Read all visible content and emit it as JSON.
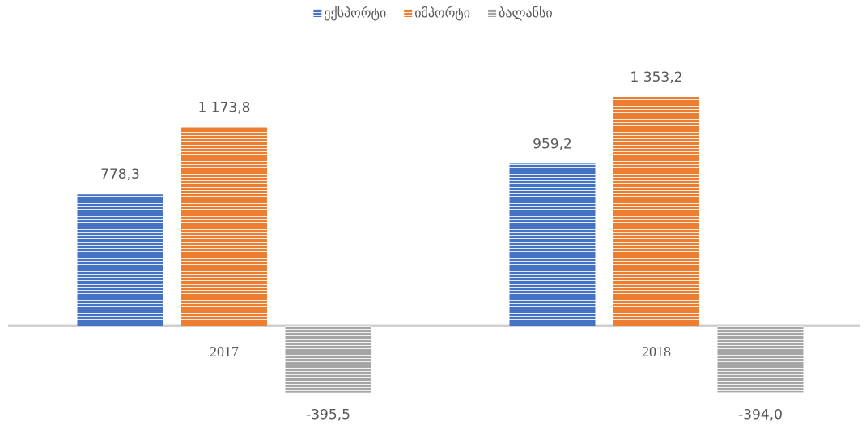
{
  "chart_data": {
    "type": "bar",
    "categories": [
      "2017",
      "2018"
    ],
    "series": [
      {
        "name": "ექსპორტი",
        "color": "#4472c4",
        "values": [
          778.3,
          959.2
        ],
        "value_labels": [
          "778,3",
          "959,2"
        ]
      },
      {
        "name": "იმპორტი",
        "color": "#ed7d31",
        "values": [
          1173.8,
          1353.2
        ],
        "value_labels": [
          "1 173,8",
          "1 353,2"
        ]
      },
      {
        "name": "ბალანსი",
        "color": "#a5a5a5",
        "values": [
          -395.5,
          -394.0
        ],
        "value_labels": [
          "-395,5",
          "-394,0"
        ]
      }
    ],
    "legend": "top"
  }
}
